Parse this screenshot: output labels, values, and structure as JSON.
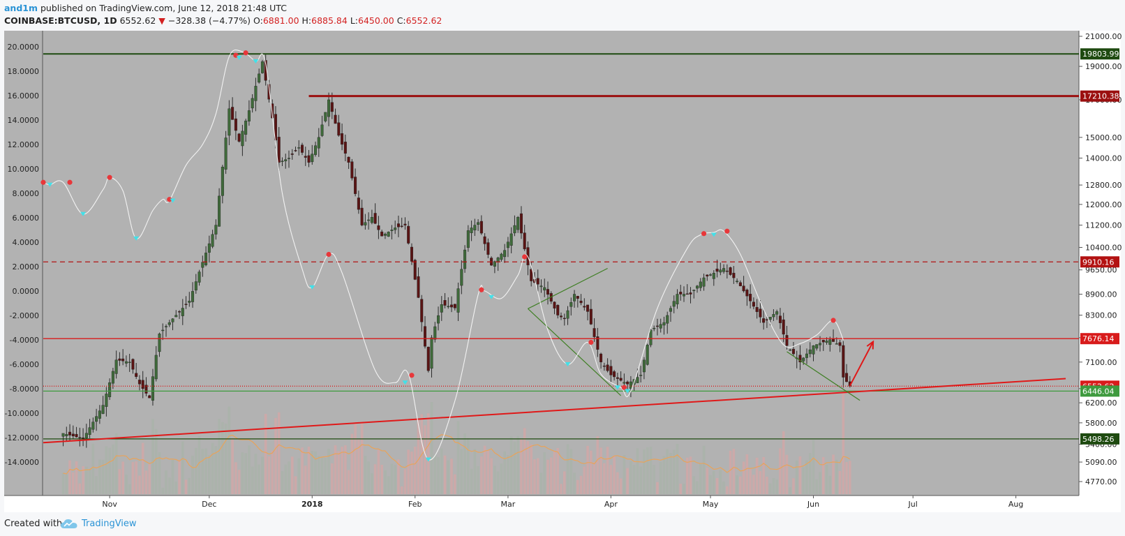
{
  "header": {
    "author": "and1m",
    "published": "published on TradingView.com, June 12, 2018 21:48 UTC",
    "symbol": "COINBASE:BTCUSD, 1D",
    "last": "6552.62",
    "change": "−328.38 (−4.77%)",
    "open_label": "O:",
    "open": "6881.00",
    "high_label": "H:",
    "high": "6885.84",
    "low_label": "L:",
    "low": "6450.00",
    "close_label": "C:",
    "close": "6552.62"
  },
  "footer": {
    "created_with": "Created with",
    "brand": "TradingView"
  },
  "chart_data": {
    "type": "candlestick",
    "symbol": "COINBASE:BTCUSD",
    "interval": "1D",
    "x_labels": [
      "Nov",
      "Dec",
      "2018",
      "Feb",
      "Mar",
      "Apr",
      "May",
      "Jun",
      "Jul",
      "Aug"
    ],
    "right_axis": {
      "scale": "log",
      "ticks": [
        "21000.00",
        "19000.00",
        "17000.00",
        "15000.00",
        "14000.00",
        "12800.00",
        "12000.00",
        "11200.00",
        "10400.00",
        "9650.00",
        "8900.00",
        "8300.00",
        "7700.00",
        "7100.00",
        "6500.00",
        "6200.00",
        "5800.00",
        "5400.00",
        "5090.00",
        "4770.00"
      ],
      "price_labels": [
        {
          "value": "19803.99",
          "color": "#1e4a10"
        },
        {
          "value": "17210.38",
          "color": "#9b0f0f"
        },
        {
          "value": "9910.16",
          "color": "#b31212"
        },
        {
          "value": "7676.14",
          "color": "#d81b1b"
        },
        {
          "value": "6552.62",
          "color": "#d81b1b"
        },
        {
          "value": "6446.04",
          "color": "#3e9a3e"
        },
        {
          "value": "5498.26",
          "color": "#1e4a10"
        }
      ]
    },
    "left_axis": {
      "ticks": [
        "20.0000",
        "18.0000",
        "16.0000",
        "14.0000",
        "12.0000",
        "10.0000",
        "8.0000",
        "6.0000",
        "4.0000",
        "2.0000",
        "0.0000",
        "-2.0000",
        "-4.0000",
        "-6.0000",
        "-8.0000",
        "-10.0000",
        "-12.0000",
        "-14.0000"
      ]
    },
    "price_series": [
      {
        "date": "2017-10-18",
        "close": 5600
      },
      {
        "date": "2017-10-24",
        "close": 5500
      },
      {
        "date": "2017-10-30",
        "close": 6150
      },
      {
        "date": "2017-11-03",
        "close": 7150
      },
      {
        "date": "2017-11-07",
        "close": 7100
      },
      {
        "date": "2017-11-10",
        "close": 6600
      },
      {
        "date": "2017-11-13",
        "close": 6300
      },
      {
        "date": "2017-11-16",
        "close": 7800
      },
      {
        "date": "2017-11-20",
        "close": 8200
      },
      {
        "date": "2017-11-25",
        "close": 8700
      },
      {
        "date": "2017-11-29",
        "close": 9900
      },
      {
        "date": "2017-12-03",
        "close": 11200
      },
      {
        "date": "2017-12-07",
        "close": 16500
      },
      {
        "date": "2017-12-10",
        "close": 14800
      },
      {
        "date": "2017-12-13",
        "close": 16400
      },
      {
        "date": "2017-12-17",
        "close": 19300
      },
      {
        "date": "2017-12-20",
        "close": 16000
      },
      {
        "date": "2017-12-22",
        "close": 13800
      },
      {
        "date": "2017-12-25",
        "close": 14000
      },
      {
        "date": "2017-12-28",
        "close": 14500
      },
      {
        "date": "2017-12-31",
        "close": 13800
      },
      {
        "date": "2018-01-03",
        "close": 15000
      },
      {
        "date": "2018-01-06",
        "close": 17000
      },
      {
        "date": "2018-01-09",
        "close": 15100
      },
      {
        "date": "2018-01-12",
        "close": 13800
      },
      {
        "date": "2018-01-16",
        "close": 11200
      },
      {
        "date": "2018-01-19",
        "close": 11500
      },
      {
        "date": "2018-01-22",
        "close": 10800
      },
      {
        "date": "2018-01-26",
        "close": 11100
      },
      {
        "date": "2018-01-29",
        "close": 11200
      },
      {
        "date": "2018-02-02",
        "close": 8800
      },
      {
        "date": "2018-02-05",
        "close": 6900
      },
      {
        "date": "2018-02-06",
        "close": 7700
      },
      {
        "date": "2018-02-09",
        "close": 8600
      },
      {
        "date": "2018-02-13",
        "close": 8500
      },
      {
        "date": "2018-02-17",
        "close": 11000
      },
      {
        "date": "2018-02-20",
        "close": 11300
      },
      {
        "date": "2018-02-24",
        "close": 9800
      },
      {
        "date": "2018-02-28",
        "close": 10300
      },
      {
        "date": "2018-03-04",
        "close": 11500
      },
      {
        "date": "2018-03-08",
        "close": 9300
      },
      {
        "date": "2018-03-12",
        "close": 9100
      },
      {
        "date": "2018-03-16",
        "close": 8300
      },
      {
        "date": "2018-03-18",
        "close": 8200
      },
      {
        "date": "2018-03-21",
        "close": 8900
      },
      {
        "date": "2018-03-25",
        "close": 8400
      },
      {
        "date": "2018-03-29",
        "close": 7100
      },
      {
        "date": "2018-04-01",
        "close": 6800
      },
      {
        "date": "2018-04-06",
        "close": 6600
      },
      {
        "date": "2018-04-10",
        "close": 6800
      },
      {
        "date": "2018-04-13",
        "close": 7900
      },
      {
        "date": "2018-04-17",
        "close": 8100
      },
      {
        "date": "2018-04-21",
        "close": 8900
      },
      {
        "date": "2018-04-25",
        "close": 8900
      },
      {
        "date": "2018-04-29",
        "close": 9400
      },
      {
        "date": "2018-05-05",
        "close": 9700
      },
      {
        "date": "2018-05-09",
        "close": 9300
      },
      {
        "date": "2018-05-13",
        "close": 8700
      },
      {
        "date": "2018-05-17",
        "close": 8100
      },
      {
        "date": "2018-05-21",
        "close": 8400
      },
      {
        "date": "2018-05-24",
        "close": 7500
      },
      {
        "date": "2018-05-28",
        "close": 7100
      },
      {
        "date": "2018-06-01",
        "close": 7500
      },
      {
        "date": "2018-06-06",
        "close": 7650
      },
      {
        "date": "2018-06-09",
        "close": 7500
      },
      {
        "date": "2018-06-10",
        "close": 6750
      },
      {
        "date": "2018-06-12",
        "close": 6552.62
      }
    ],
    "oscillator_series": [
      {
        "date": "2017-10-12",
        "value": 8.9
      },
      {
        "date": "2017-10-14",
        "value": 8.7
      },
      {
        "date": "2017-10-18",
        "value": 8.9
      },
      {
        "date": "2017-10-24",
        "value": 6.3
      },
      {
        "date": "2017-10-30",
        "value": 8.3
      },
      {
        "date": "2017-11-01",
        "value": 9.3
      },
      {
        "date": "2017-11-05",
        "value": 8.2
      },
      {
        "date": "2017-11-09",
        "value": 4.3
      },
      {
        "date": "2017-11-14",
        "value": 6.6
      },
      {
        "date": "2017-11-17",
        "value": 7.5
      },
      {
        "date": "2017-11-19",
        "value": 7.4
      },
      {
        "date": "2017-11-24",
        "value": 10.3
      },
      {
        "date": "2017-11-29",
        "value": 12.0
      },
      {
        "date": "2017-12-03",
        "value": 14.5
      },
      {
        "date": "2017-12-07",
        "value": 19.2
      },
      {
        "date": "2017-12-11",
        "value": 19.6
      },
      {
        "date": "2017-12-15",
        "value": 18.8
      },
      {
        "date": "2017-12-18",
        "value": 18.6
      },
      {
        "date": "2017-12-23",
        "value": 8.0
      },
      {
        "date": "2017-12-29",
        "value": 1.8
      },
      {
        "date": "2018-01-01",
        "value": 0.3
      },
      {
        "date": "2018-01-06",
        "value": 3.0
      },
      {
        "date": "2018-01-10",
        "value": 1.5
      },
      {
        "date": "2018-01-20",
        "value": -6.5
      },
      {
        "date": "2018-01-26",
        "value": -7.5
      },
      {
        "date": "2018-01-30",
        "value": -6.8
      },
      {
        "date": "2018-02-05",
        "value": -13.8
      },
      {
        "date": "2018-02-13",
        "value": -9.0
      },
      {
        "date": "2018-02-20",
        "value": -0.3
      },
      {
        "date": "2018-02-22",
        "value": 0.0
      },
      {
        "date": "2018-02-27",
        "value": -0.6
      },
      {
        "date": "2018-03-04",
        "value": 1.3
      },
      {
        "date": "2018-03-07",
        "value": 2.8
      },
      {
        "date": "2018-03-13",
        "value": -3.2
      },
      {
        "date": "2018-03-19",
        "value": -6.0
      },
      {
        "date": "2018-03-25",
        "value": -4.2
      },
      {
        "date": "2018-03-29",
        "value": -6.8
      },
      {
        "date": "2018-04-04",
        "value": -7.9
      },
      {
        "date": "2018-04-07",
        "value": -8.2
      },
      {
        "date": "2018-04-15",
        "value": -1.4
      },
      {
        "date": "2018-04-24",
        "value": 3.5
      },
      {
        "date": "2018-04-28",
        "value": 4.6
      },
      {
        "date": "2018-05-02",
        "value": 4.8
      },
      {
        "date": "2018-05-05",
        "value": 4.9
      },
      {
        "date": "2018-05-10",
        "value": 3.0
      },
      {
        "date": "2018-05-17",
        "value": -1.5
      },
      {
        "date": "2018-05-23",
        "value": -4.4
      },
      {
        "date": "2018-05-28",
        "value": -4.3
      },
      {
        "date": "2018-06-02",
        "value": -3.6
      },
      {
        "date": "2018-06-07",
        "value": -2.4
      },
      {
        "date": "2018-06-10",
        "value": -4.0
      }
    ],
    "markers_red": [
      {
        "date": "2017-10-12",
        "value": 8.9
      },
      {
        "date": "2017-10-20",
        "value": 8.9
      },
      {
        "date": "2017-11-01",
        "value": 9.3
      },
      {
        "date": "2017-11-19",
        "value": 7.5
      },
      {
        "date": "2017-12-09",
        "value": 19.3
      },
      {
        "date": "2017-12-12",
        "value": 19.5
      },
      {
        "date": "2018-01-06",
        "value": 3.0
      },
      {
        "date": "2018-01-31",
        "value": -6.9
      },
      {
        "date": "2018-02-21",
        "value": 0.1
      },
      {
        "date": "2018-03-06",
        "value": 2.8
      },
      {
        "date": "2018-03-26",
        "value": -4.2
      },
      {
        "date": "2018-04-05",
        "value": -7.9
      },
      {
        "date": "2018-04-29",
        "value": 4.7
      },
      {
        "date": "2018-05-06",
        "value": 4.9
      },
      {
        "date": "2018-06-07",
        "value": -2.4
      }
    ],
    "markers_cyan": [
      {
        "date": "2017-10-14",
        "value": 8.7
      },
      {
        "date": "2017-10-24",
        "value": 6.3
      },
      {
        "date": "2017-11-09",
        "value": 4.3
      },
      {
        "date": "2017-11-20",
        "value": 7.4
      },
      {
        "date": "2017-12-10",
        "value": 19.1
      },
      {
        "date": "2017-12-15",
        "value": 18.8
      },
      {
        "date": "2018-01-01",
        "value": 0.3
      },
      {
        "date": "2018-01-29",
        "value": -7.5
      },
      {
        "date": "2018-02-05",
        "value": -13.8
      },
      {
        "date": "2018-02-24",
        "value": -0.5
      },
      {
        "date": "2018-03-19",
        "value": -6.0
      },
      {
        "date": "2018-04-03",
        "value": -7.9
      },
      {
        "date": "2018-04-06",
        "value": -8.2
      },
      {
        "date": "2018-05-02",
        "value": 4.6
      }
    ],
    "horizontal_levels": [
      {
        "price": 19803.99,
        "color": "#1e4a10",
        "style": "solid"
      },
      {
        "price": 17210.38,
        "color": "#9b0f0f",
        "style": "solid",
        "start": "2017-12-31"
      },
      {
        "price": 9910.16,
        "color": "#b31212",
        "style": "dashed"
      },
      {
        "price": 7676.14,
        "color": "#d81b1b",
        "style": "solid"
      },
      {
        "price": 6552.62,
        "color": "#d81b1b",
        "style": "dotted"
      },
      {
        "price": 6446.04,
        "color": "#3e9a3e",
        "style": "solid"
      },
      {
        "price": 5498.26,
        "color": "#1e4a10",
        "style": "solid"
      }
    ],
    "trend_lines": [
      {
        "from": {
          "date": "2017-10-12",
          "price": 5430
        },
        "to": {
          "date": "2018-08-16",
          "price": 6720
        },
        "color": "#e01818"
      },
      {
        "from": {
          "date": "2018-03-07",
          "price": 8480
        },
        "to": {
          "date": "2018-03-31",
          "price": 9700
        },
        "color": "#3f7f24"
      },
      {
        "from": {
          "date": "2018-03-07",
          "price": 8480
        },
        "to": {
          "date": "2018-04-04",
          "price": 6350
        },
        "color": "#3f7f24"
      },
      {
        "from": {
          "date": "2018-05-24",
          "price": 7350
        },
        "to": {
          "date": "2018-06-15",
          "price": 6250
        },
        "color": "#3f7f24"
      }
    ],
    "arrow": {
      "from": {
        "date": "2018-06-12",
        "price": 6560
      },
      "to": {
        "date": "2018-06-19",
        "price": 7600
      },
      "color": "#e01818"
    }
  }
}
